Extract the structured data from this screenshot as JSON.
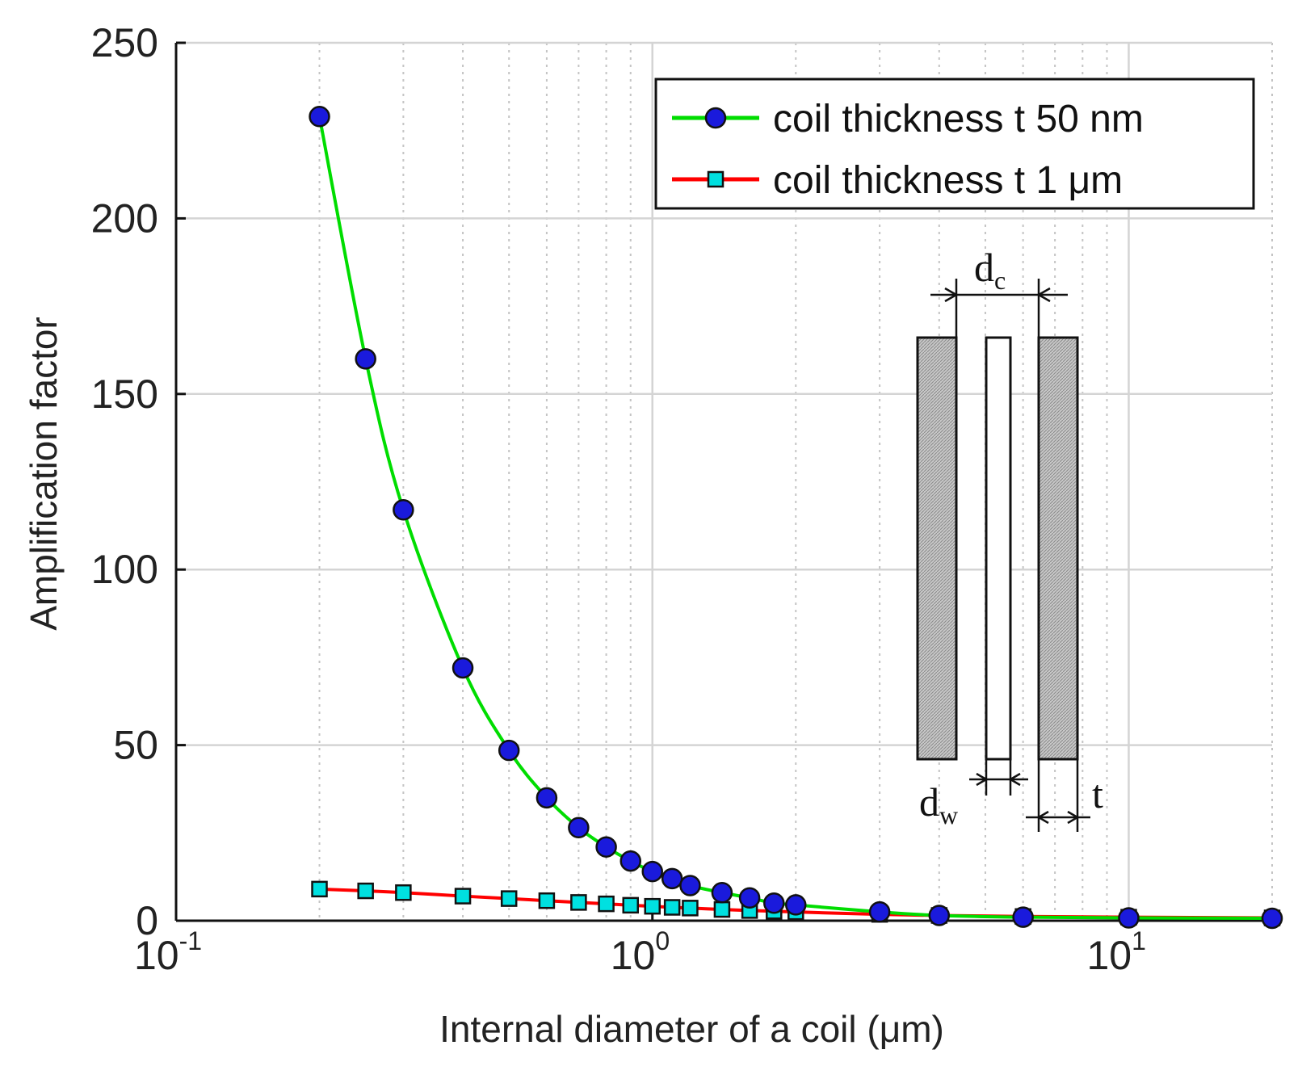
{
  "chart_data": {
    "type": "line",
    "title": "",
    "xlabel": "Internal diameter of a coil (μm)",
    "ylabel": "Amplification factor",
    "xscale": "log",
    "xlim": [
      0.1,
      20
    ],
    "ylim": [
      0,
      250
    ],
    "grid": true,
    "x_ticks": [
      {
        "base": "10",
        "exp": "-1",
        "value": 0.1
      },
      {
        "base": "10",
        "exp": "0",
        "value": 1
      },
      {
        "base": "10",
        "exp": "1",
        "value": 10
      }
    ],
    "y_ticks": [
      {
        "label": "0",
        "value": 0
      },
      {
        "label": "50",
        "value": 50
      },
      {
        "label": "100",
        "value": 100
      },
      {
        "label": "150",
        "value": 150
      },
      {
        "label": "200",
        "value": 200
      },
      {
        "label": "250",
        "value": 250
      }
    ],
    "legend_position": "top-right",
    "series": [
      {
        "name": "coil thickness t 50 nm",
        "color": "#00dd00",
        "marker": "circle",
        "marker_color": "#1a1adc",
        "x": [
          0.2,
          0.25,
          0.3,
          0.4,
          0.5,
          0.6,
          0.7,
          0.8,
          0.9,
          1.0,
          1.1,
          1.2,
          1.4,
          1.6,
          1.8,
          2.0,
          3.0,
          4.0,
          6.0,
          10.0,
          20.0
        ],
        "values": [
          229,
          160,
          117,
          72,
          48.5,
          35,
          26.5,
          21,
          17,
          14,
          12,
          10,
          8,
          6.5,
          5,
          4.5,
          2.5,
          1.5,
          1,
          0.8,
          0.7
        ]
      },
      {
        "name": "coil thickness t 1 μm",
        "color": "#ff0000",
        "marker": "square",
        "marker_color": "#00e0e0",
        "x": [
          0.2,
          0.25,
          0.3,
          0.4,
          0.5,
          0.6,
          0.7,
          0.8,
          0.9,
          1.0,
          1.1,
          1.2,
          1.4,
          1.6,
          1.8,
          2.0,
          3.0,
          4.0,
          6.0,
          10.0,
          20.0
        ],
        "values": [
          9,
          8.5,
          8,
          7,
          6.3,
          5.7,
          5.2,
          4.8,
          4.4,
          4.1,
          3.8,
          3.6,
          3.2,
          2.9,
          2.7,
          2.5,
          1.8,
          1.5,
          1.2,
          1,
          0.8
        ]
      }
    ],
    "inset": {
      "label_dc": "d",
      "label_dc_sub": "c",
      "label_dw": "d",
      "label_dw_sub": "w",
      "label_t": "t"
    }
  }
}
